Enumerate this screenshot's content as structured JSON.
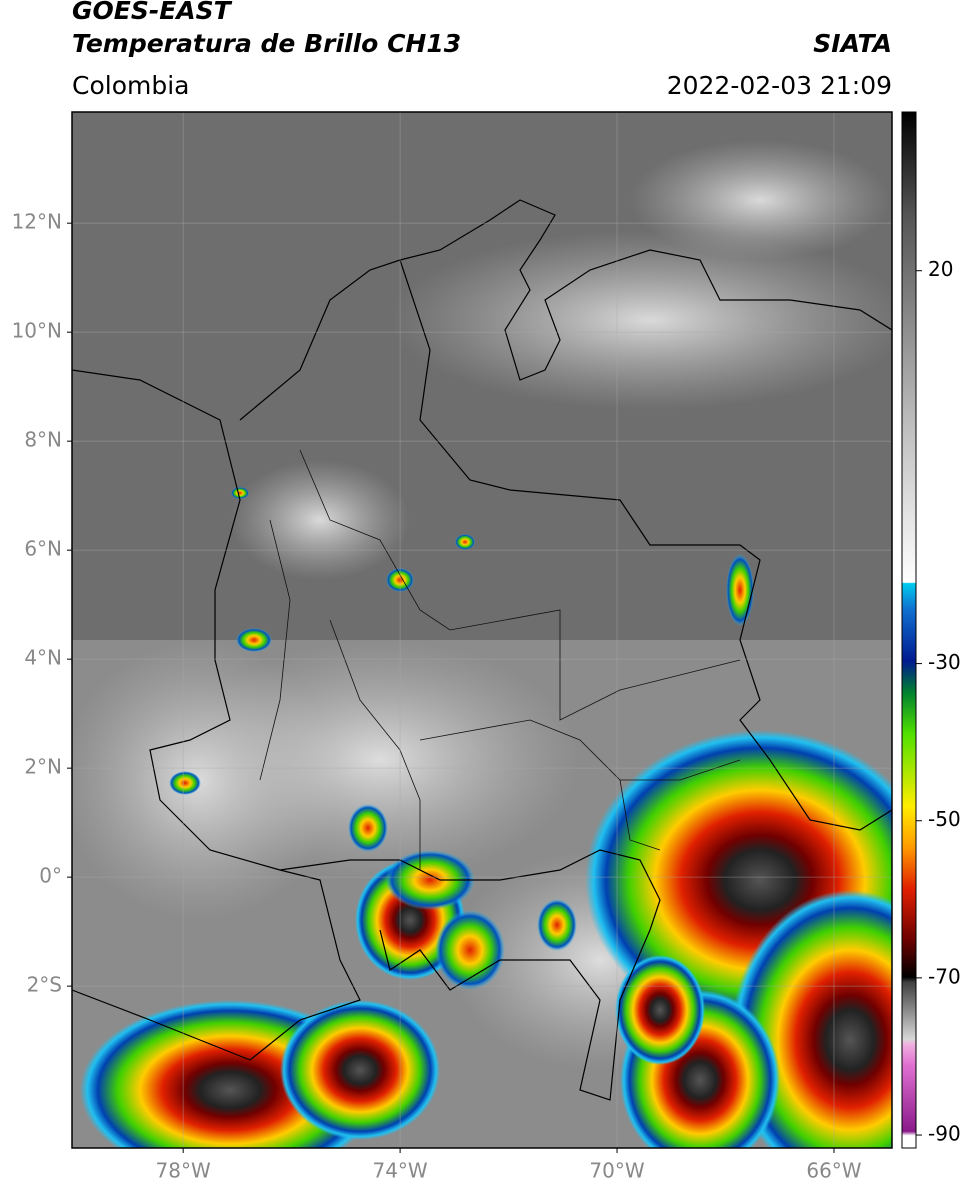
{
  "header": {
    "title": "GOES-EAST",
    "subtitle": "Temperatura de Brillo CH13",
    "source": "SIATA",
    "region": "Colombia",
    "datetime": "2022-02-03 21:09"
  },
  "map": {
    "xlim": [
      -80.05,
      -64.93
    ],
    "ylim": [
      -4.97,
      14.04
    ],
    "xticks": [
      {
        "value": -78,
        "label": "78°W"
      },
      {
        "value": -74,
        "label": "74°W"
      },
      {
        "value": -70,
        "label": "70°W"
      },
      {
        "value": -66,
        "label": "66°W"
      }
    ],
    "yticks": [
      {
        "value": 12,
        "label": "12°N"
      },
      {
        "value": 10,
        "label": "10°N"
      },
      {
        "value": 8,
        "label": "8°N"
      },
      {
        "value": 6,
        "label": "6°N"
      },
      {
        "value": 4,
        "label": "4°N"
      },
      {
        "value": 2,
        "label": "2°N"
      },
      {
        "value": 0,
        "label": "0°"
      },
      {
        "value": -2,
        "label": "2°S"
      }
    ],
    "grid": true
  },
  "colorbar": {
    "lim": [
      -91.65,
      40.2
    ],
    "ticks": [
      20,
      -30,
      -50,
      -70,
      -90
    ]
  }
}
